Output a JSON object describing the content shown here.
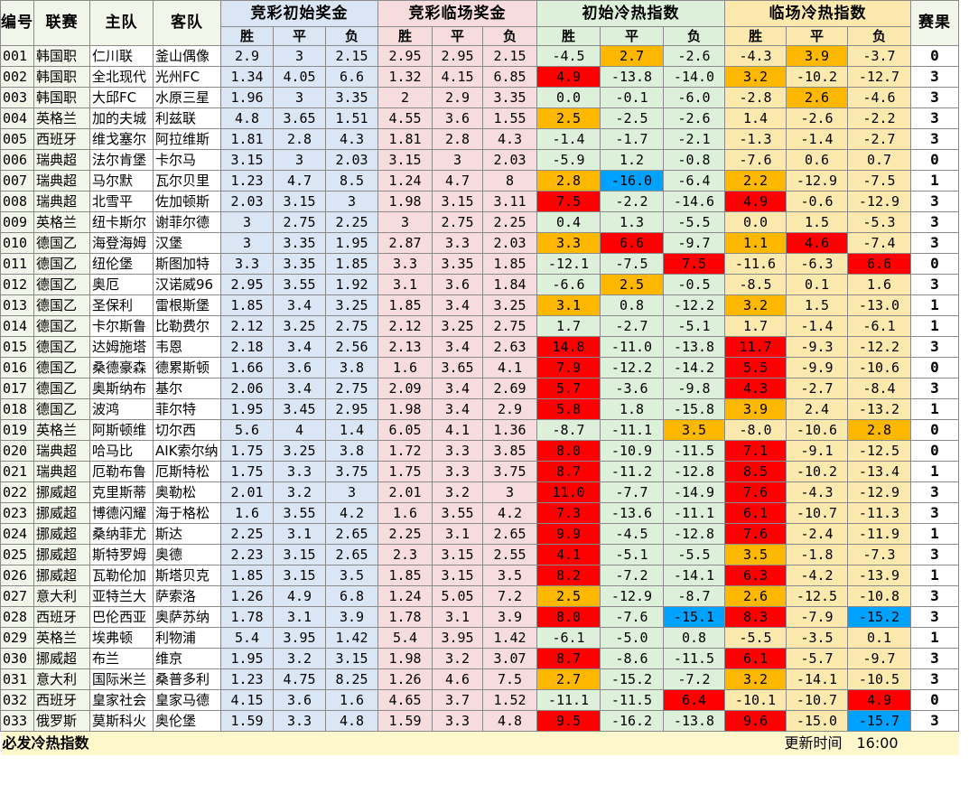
{
  "colors": {
    "base_bg": "#f2f5e9",
    "initial_odds_bg": "#dbe6f4",
    "live_odds_bg": "#f6dcdc",
    "initial_index_bg": "#dcf0da",
    "live_index_bg": "#fbe9ae",
    "hot_red": "#ff0000",
    "warm_orange": "#ffb800",
    "cold_blue": "#00a2ff"
  },
  "header": {
    "id": "编号",
    "league": "联赛",
    "home": "主队",
    "away": "客队",
    "initial_odds": "竞彩初始奖金",
    "live_odds": "竞彩临场奖金",
    "initial_index": "初始冷热指数",
    "live_index": "临场冷热指数",
    "result": "赛果",
    "sub": [
      "胜",
      "平",
      "负",
      "胜",
      "平",
      "负",
      "胜",
      "平",
      "负",
      "胜",
      "平",
      "负"
    ]
  },
  "rows": [
    {
      "id": "001",
      "league": "韩国职",
      "home": "仁川联",
      "away": "釜山偶像",
      "init": [
        "2.9",
        "3",
        "2.15"
      ],
      "live": [
        "2.95",
        "2.95",
        "2.15"
      ],
      "ci": [
        "-4.5",
        "2.7",
        "-2.6"
      ],
      "ci_c": [
        "",
        "o",
        ""
      ],
      "li": [
        "-4.3",
        "3.9",
        "-3.7"
      ],
      "li_c": [
        "",
        "o",
        ""
      ],
      "result": "0"
    },
    {
      "id": "002",
      "league": "韩国职",
      "home": "全北现代",
      "away": "光州FC",
      "init": [
        "1.34",
        "4.05",
        "6.6"
      ],
      "live": [
        "1.32",
        "4.15",
        "6.85"
      ],
      "ci": [
        "4.9",
        "-13.8",
        "-14.0"
      ],
      "ci_c": [
        "r",
        "",
        ""
      ],
      "li": [
        "3.2",
        "-10.2",
        "-12.7"
      ],
      "li_c": [
        "o",
        "",
        ""
      ],
      "result": "3"
    },
    {
      "id": "003",
      "league": "韩国职",
      "home": "大邱FC",
      "away": "水原三星",
      "init": [
        "1.96",
        "3",
        "3.35"
      ],
      "live": [
        "2",
        "2.9",
        "3.35"
      ],
      "ci": [
        "0.0",
        "-0.1",
        "-6.0"
      ],
      "ci_c": [
        "",
        "",
        ""
      ],
      "li": [
        "-2.8",
        "2.6",
        "-4.6"
      ],
      "li_c": [
        "",
        "o",
        ""
      ],
      "result": "3"
    },
    {
      "id": "004",
      "league": "英格兰",
      "home": "加的夫城",
      "away": "利兹联",
      "init": [
        "4.8",
        "3.65",
        "1.51"
      ],
      "live": [
        "4.55",
        "3.6",
        "1.55"
      ],
      "ci": [
        "2.5",
        "-2.5",
        "-2.6"
      ],
      "ci_c": [
        "o",
        "",
        ""
      ],
      "li": [
        "1.4",
        "-2.6",
        "-2.2"
      ],
      "li_c": [
        "",
        "",
        ""
      ],
      "result": "3"
    },
    {
      "id": "005",
      "league": "西班牙",
      "home": "维戈塞尔",
      "away": "阿拉维斯",
      "init": [
        "1.81",
        "2.8",
        "4.3"
      ],
      "live": [
        "1.81",
        "2.8",
        "4.3"
      ],
      "ci": [
        "-1.4",
        "-1.7",
        "-2.1"
      ],
      "ci_c": [
        "",
        "",
        ""
      ],
      "li": [
        "-1.3",
        "-1.4",
        "-2.7"
      ],
      "li_c": [
        "",
        "",
        ""
      ],
      "result": "3"
    },
    {
      "id": "006",
      "league": "瑞典超",
      "home": "法尔肯堡",
      "away": "卡尔马",
      "init": [
        "3.15",
        "3",
        "2.03"
      ],
      "live": [
        "3.15",
        "3",
        "2.03"
      ],
      "ci": [
        "-5.9",
        "1.2",
        "-0.8"
      ],
      "ci_c": [
        "",
        "",
        ""
      ],
      "li": [
        "-7.6",
        "0.6",
        "0.7"
      ],
      "li_c": [
        "",
        "",
        ""
      ],
      "result": "0"
    },
    {
      "id": "007",
      "league": "瑞典超",
      "home": "马尔默",
      "away": "瓦尔贝里",
      "init": [
        "1.23",
        "4.7",
        "8.5"
      ],
      "live": [
        "1.24",
        "4.7",
        "8"
      ],
      "ci": [
        "2.8",
        "-16.0",
        "-6.4"
      ],
      "ci_c": [
        "o",
        "b",
        ""
      ],
      "li": [
        "2.2",
        "-12.9",
        "-7.5"
      ],
      "li_c": [
        "o",
        "",
        ""
      ],
      "result": "1"
    },
    {
      "id": "008",
      "league": "瑞典超",
      "home": "北雪平",
      "away": "佐加顿斯",
      "init": [
        "2.03",
        "3.15",
        "3"
      ],
      "live": [
        "1.98",
        "3.15",
        "3.11"
      ],
      "ci": [
        "7.5",
        "-2.2",
        "-14.6"
      ],
      "ci_c": [
        "r",
        "",
        ""
      ],
      "li": [
        "4.9",
        "-0.6",
        "-12.9"
      ],
      "li_c": [
        "r",
        "",
        ""
      ],
      "result": "3"
    },
    {
      "id": "009",
      "league": "英格兰",
      "home": "纽卡斯尔",
      "away": "谢菲尔德",
      "init": [
        "3",
        "2.75",
        "2.25"
      ],
      "live": [
        "3",
        "2.75",
        "2.25"
      ],
      "ci": [
        "0.4",
        "1.3",
        "-5.5"
      ],
      "ci_c": [
        "",
        "",
        ""
      ],
      "li": [
        "0.0",
        "1.5",
        "-5.3"
      ],
      "li_c": [
        "",
        "",
        ""
      ],
      "result": "3"
    },
    {
      "id": "010",
      "league": "德国乙",
      "home": "海登海姆",
      "away": "汉堡",
      "init": [
        "3",
        "3.35",
        "1.95"
      ],
      "live": [
        "2.87",
        "3.3",
        "2.03"
      ],
      "ci": [
        "3.3",
        "6.6",
        "-9.7"
      ],
      "ci_c": [
        "o",
        "r",
        ""
      ],
      "li": [
        "1.1",
        "4.6",
        "-7.4"
      ],
      "li_c": [
        "o",
        "r",
        ""
      ],
      "result": "3"
    },
    {
      "id": "011",
      "league": "德国乙",
      "home": "纽伦堡",
      "away": "斯图加特",
      "init": [
        "3.3",
        "3.35",
        "1.85"
      ],
      "live": [
        "3.3",
        "3.35",
        "1.85"
      ],
      "ci": [
        "-12.1",
        "-7.5",
        "7.5"
      ],
      "ci_c": [
        "",
        "",
        "r"
      ],
      "li": [
        "-11.6",
        "-6.3",
        "6.6"
      ],
      "li_c": [
        "",
        "",
        "r"
      ],
      "result": "0"
    },
    {
      "id": "012",
      "league": "德国乙",
      "home": "奥厄",
      "away": "汉诺威96",
      "init": [
        "2.95",
        "3.55",
        "1.92"
      ],
      "live": [
        "3.1",
        "3.6",
        "1.84"
      ],
      "ci": [
        "-6.6",
        "2.5",
        "-0.5"
      ],
      "ci_c": [
        "",
        "o",
        ""
      ],
      "li": [
        "-8.5",
        "0.1",
        "1.6"
      ],
      "li_c": [
        "",
        "",
        ""
      ],
      "result": "3"
    },
    {
      "id": "013",
      "league": "德国乙",
      "home": "圣保利",
      "away": "雷根斯堡",
      "init": [
        "1.85",
        "3.4",
        "3.25"
      ],
      "live": [
        "1.85",
        "3.4",
        "3.25"
      ],
      "ci": [
        "3.1",
        "0.8",
        "-12.2"
      ],
      "ci_c": [
        "o",
        "",
        ""
      ],
      "li": [
        "3.2",
        "1.5",
        "-13.0"
      ],
      "li_c": [
        "o",
        "",
        ""
      ],
      "result": "1"
    },
    {
      "id": "014",
      "league": "德国乙",
      "home": "卡尔斯鲁",
      "away": "比勒费尔",
      "init": [
        "2.12",
        "3.25",
        "2.75"
      ],
      "live": [
        "2.12",
        "3.25",
        "2.75"
      ],
      "ci": [
        "1.7",
        "-2.7",
        "-5.1"
      ],
      "ci_c": [
        "",
        "",
        ""
      ],
      "li": [
        "1.7",
        "-1.4",
        "-6.1"
      ],
      "li_c": [
        "",
        "",
        ""
      ],
      "result": "1"
    },
    {
      "id": "015",
      "league": "德国乙",
      "home": "达姆施塔",
      "away": "韦恩",
      "init": [
        "2.18",
        "3.4",
        "2.56"
      ],
      "live": [
        "2.13",
        "3.4",
        "2.63"
      ],
      "ci": [
        "14.8",
        "-11.0",
        "-13.8"
      ],
      "ci_c": [
        "r",
        "",
        ""
      ],
      "li": [
        "11.7",
        "-9.3",
        "-12.2"
      ],
      "li_c": [
        "r",
        "",
        ""
      ],
      "result": "3"
    },
    {
      "id": "016",
      "league": "德国乙",
      "home": "桑德豪森",
      "away": "德累斯顿",
      "init": [
        "1.66",
        "3.6",
        "3.8"
      ],
      "live": [
        "1.6",
        "3.65",
        "4.1"
      ],
      "ci": [
        "7.9",
        "-12.2",
        "-14.2"
      ],
      "ci_c": [
        "r",
        "",
        ""
      ],
      "li": [
        "5.5",
        "-9.9",
        "-10.6"
      ],
      "li_c": [
        "r",
        "",
        ""
      ],
      "result": "0"
    },
    {
      "id": "017",
      "league": "德国乙",
      "home": "奥斯纳布",
      "away": "基尔",
      "init": [
        "2.06",
        "3.4",
        "2.75"
      ],
      "live": [
        "2.09",
        "3.4",
        "2.69"
      ],
      "ci": [
        "5.7",
        "-3.6",
        "-9.8"
      ],
      "ci_c": [
        "r",
        "",
        ""
      ],
      "li": [
        "4.3",
        "-2.7",
        "-8.4"
      ],
      "li_c": [
        "r",
        "",
        ""
      ],
      "result": "3"
    },
    {
      "id": "018",
      "league": "德国乙",
      "home": "波鸿",
      "away": "菲尔特",
      "init": [
        "1.95",
        "3.45",
        "2.95"
      ],
      "live": [
        "1.98",
        "3.4",
        "2.9"
      ],
      "ci": [
        "5.8",
        "1.8",
        "-15.8"
      ],
      "ci_c": [
        "r",
        "",
        ""
      ],
      "li": [
        "3.9",
        "2.4",
        "-13.2"
      ],
      "li_c": [
        "o",
        "",
        ""
      ],
      "result": "1"
    },
    {
      "id": "019",
      "league": "英格兰",
      "home": "阿斯顿维",
      "away": "切尔西",
      "init": [
        "5.6",
        "4",
        "1.4"
      ],
      "live": [
        "6.05",
        "4.1",
        "1.36"
      ],
      "ci": [
        "-8.7",
        "-11.1",
        "3.5"
      ],
      "ci_c": [
        "",
        "",
        "o"
      ],
      "li": [
        "-8.0",
        "-10.6",
        "2.8"
      ],
      "li_c": [
        "",
        "",
        "o"
      ],
      "result": "0"
    },
    {
      "id": "020",
      "league": "瑞典超",
      "home": "哈马比",
      "away": "AIK索尔纳",
      "init": [
        "1.75",
        "3.25",
        "3.8"
      ],
      "live": [
        "1.72",
        "3.3",
        "3.85"
      ],
      "ci": [
        "8.0",
        "-10.9",
        "-11.5"
      ],
      "ci_c": [
        "r",
        "",
        ""
      ],
      "li": [
        "7.1",
        "-9.1",
        "-12.5"
      ],
      "li_c": [
        "r",
        "",
        ""
      ],
      "result": "0"
    },
    {
      "id": "021",
      "league": "瑞典超",
      "home": "厄勒布鲁",
      "away": "厄斯特松",
      "init": [
        "1.75",
        "3.3",
        "3.75"
      ],
      "live": [
        "1.75",
        "3.3",
        "3.75"
      ],
      "ci": [
        "8.7",
        "-11.2",
        "-12.8"
      ],
      "ci_c": [
        "r",
        "",
        ""
      ],
      "li": [
        "8.5",
        "-10.2",
        "-13.4"
      ],
      "li_c": [
        "r",
        "",
        ""
      ],
      "result": "1"
    },
    {
      "id": "022",
      "league": "挪威超",
      "home": "克里斯蒂",
      "away": "奥勒松",
      "init": [
        "2.01",
        "3.2",
        "3"
      ],
      "live": [
        "2.01",
        "3.2",
        "3"
      ],
      "ci": [
        "11.0",
        "-7.7",
        "-14.9"
      ],
      "ci_c": [
        "r",
        "",
        ""
      ],
      "li": [
        "7.6",
        "-4.3",
        "-12.9"
      ],
      "li_c": [
        "r",
        "",
        ""
      ],
      "result": "3"
    },
    {
      "id": "023",
      "league": "挪威超",
      "home": "博德闪耀",
      "away": "海于格松",
      "init": [
        "1.6",
        "3.55",
        "4.2"
      ],
      "live": [
        "1.6",
        "3.55",
        "4.2"
      ],
      "ci": [
        "7.3",
        "-13.6",
        "-11.1"
      ],
      "ci_c": [
        "r",
        "",
        ""
      ],
      "li": [
        "6.1",
        "-10.7",
        "-11.3"
      ],
      "li_c": [
        "r",
        "",
        ""
      ],
      "result": "3"
    },
    {
      "id": "024",
      "league": "挪威超",
      "home": "桑纳菲尤",
      "away": "斯达",
      "init": [
        "2.25",
        "3.1",
        "2.65"
      ],
      "live": [
        "2.25",
        "3.1",
        "2.65"
      ],
      "ci": [
        "9.9",
        "-4.5",
        "-12.8"
      ],
      "ci_c": [
        "r",
        "",
        ""
      ],
      "li": [
        "7.6",
        "-2.4",
        "-11.9"
      ],
      "li_c": [
        "r",
        "",
        ""
      ],
      "result": "1"
    },
    {
      "id": "025",
      "league": "挪威超",
      "home": "斯特罗姆",
      "away": "奥德",
      "init": [
        "2.23",
        "3.15",
        "2.65"
      ],
      "live": [
        "2.3",
        "3.15",
        "2.55"
      ],
      "ci": [
        "4.1",
        "-5.1",
        "-5.5"
      ],
      "ci_c": [
        "r",
        "",
        ""
      ],
      "li": [
        "3.5",
        "-1.8",
        "-7.3"
      ],
      "li_c": [
        "o",
        "",
        ""
      ],
      "result": "3"
    },
    {
      "id": "026",
      "league": "挪威超",
      "home": "瓦勒伦加",
      "away": "斯塔贝克",
      "init": [
        "1.85",
        "3.15",
        "3.5"
      ],
      "live": [
        "1.85",
        "3.15",
        "3.5"
      ],
      "ci": [
        "8.2",
        "-7.2",
        "-14.1"
      ],
      "ci_c": [
        "r",
        "",
        ""
      ],
      "li": [
        "6.3",
        "-4.2",
        "-13.9"
      ],
      "li_c": [
        "r",
        "",
        ""
      ],
      "result": "1"
    },
    {
      "id": "027",
      "league": "意大利",
      "home": "亚特兰大",
      "away": "萨索洛",
      "init": [
        "1.26",
        "4.9",
        "6.8"
      ],
      "live": [
        "1.24",
        "5.05",
        "7.2"
      ],
      "ci": [
        "2.5",
        "-12.9",
        "-8.7"
      ],
      "ci_c": [
        "o",
        "",
        ""
      ],
      "li": [
        "2.6",
        "-12.5",
        "-10.8"
      ],
      "li_c": [
        "o",
        "",
        ""
      ],
      "result": "3"
    },
    {
      "id": "028",
      "league": "西班牙",
      "home": "巴伦西亚",
      "away": "奥萨苏纳",
      "init": [
        "1.78",
        "3.1",
        "3.9"
      ],
      "live": [
        "1.78",
        "3.1",
        "3.9"
      ],
      "ci": [
        "8.0",
        "-7.6",
        "-15.1"
      ],
      "ci_c": [
        "r",
        "",
        "b"
      ],
      "li": [
        "8.3",
        "-7.9",
        "-15.2"
      ],
      "li_c": [
        "r",
        "",
        "b"
      ],
      "result": "3"
    },
    {
      "id": "029",
      "league": "英格兰",
      "home": "埃弗顿",
      "away": "利物浦",
      "init": [
        "5.4",
        "3.95",
        "1.42"
      ],
      "live": [
        "5.4",
        "3.95",
        "1.42"
      ],
      "ci": [
        "-6.1",
        "-5.0",
        "0.8"
      ],
      "ci_c": [
        "",
        "",
        ""
      ],
      "li": [
        "-5.5",
        "-3.5",
        "0.1"
      ],
      "li_c": [
        "",
        "",
        ""
      ],
      "result": "1"
    },
    {
      "id": "030",
      "league": "挪威超",
      "home": "布兰",
      "away": "维京",
      "init": [
        "1.95",
        "3.2",
        "3.15"
      ],
      "live": [
        "1.98",
        "3.2",
        "3.07"
      ],
      "ci": [
        "8.7",
        "-8.6",
        "-11.5"
      ],
      "ci_c": [
        "r",
        "",
        ""
      ],
      "li": [
        "6.1",
        "-5.7",
        "-9.7"
      ],
      "li_c": [
        "r",
        "",
        ""
      ],
      "result": "3"
    },
    {
      "id": "031",
      "league": "意大利",
      "home": "国际米兰",
      "away": "桑普多利",
      "init": [
        "1.23",
        "4.75",
        "8.25"
      ],
      "live": [
        "1.26",
        "4.6",
        "7.5"
      ],
      "ci": [
        "2.7",
        "-15.2",
        "-7.2"
      ],
      "ci_c": [
        "o",
        "",
        ""
      ],
      "li": [
        "3.2",
        "-14.1",
        "-10.5"
      ],
      "li_c": [
        "o",
        "",
        ""
      ],
      "result": "3"
    },
    {
      "id": "032",
      "league": "西班牙",
      "home": "皇家社会",
      "away": "皇家马德",
      "init": [
        "4.15",
        "3.6",
        "1.6"
      ],
      "live": [
        "4.65",
        "3.7",
        "1.52"
      ],
      "ci": [
        "-11.1",
        "-11.5",
        "6.4"
      ],
      "ci_c": [
        "",
        "",
        "r"
      ],
      "li": [
        "-10.1",
        "-10.7",
        "4.9"
      ],
      "li_c": [
        "",
        "",
        "r"
      ],
      "result": "0"
    },
    {
      "id": "033",
      "league": "俄罗斯",
      "home": "莫斯科火",
      "away": "奥伦堡",
      "init": [
        "1.59",
        "3.3",
        "4.8"
      ],
      "live": [
        "1.59",
        "3.3",
        "4.8"
      ],
      "ci": [
        "9.5",
        "-16.2",
        "-13.8"
      ],
      "ci_c": [
        "r",
        "",
        ""
      ],
      "li": [
        "9.6",
        "-15.0",
        "-15.7"
      ],
      "li_c": [
        "r",
        "",
        "b"
      ],
      "result": "3"
    }
  ],
  "footer": {
    "title": "必发冷热指数",
    "update_label": "更新时间",
    "update_time": "16:00"
  }
}
